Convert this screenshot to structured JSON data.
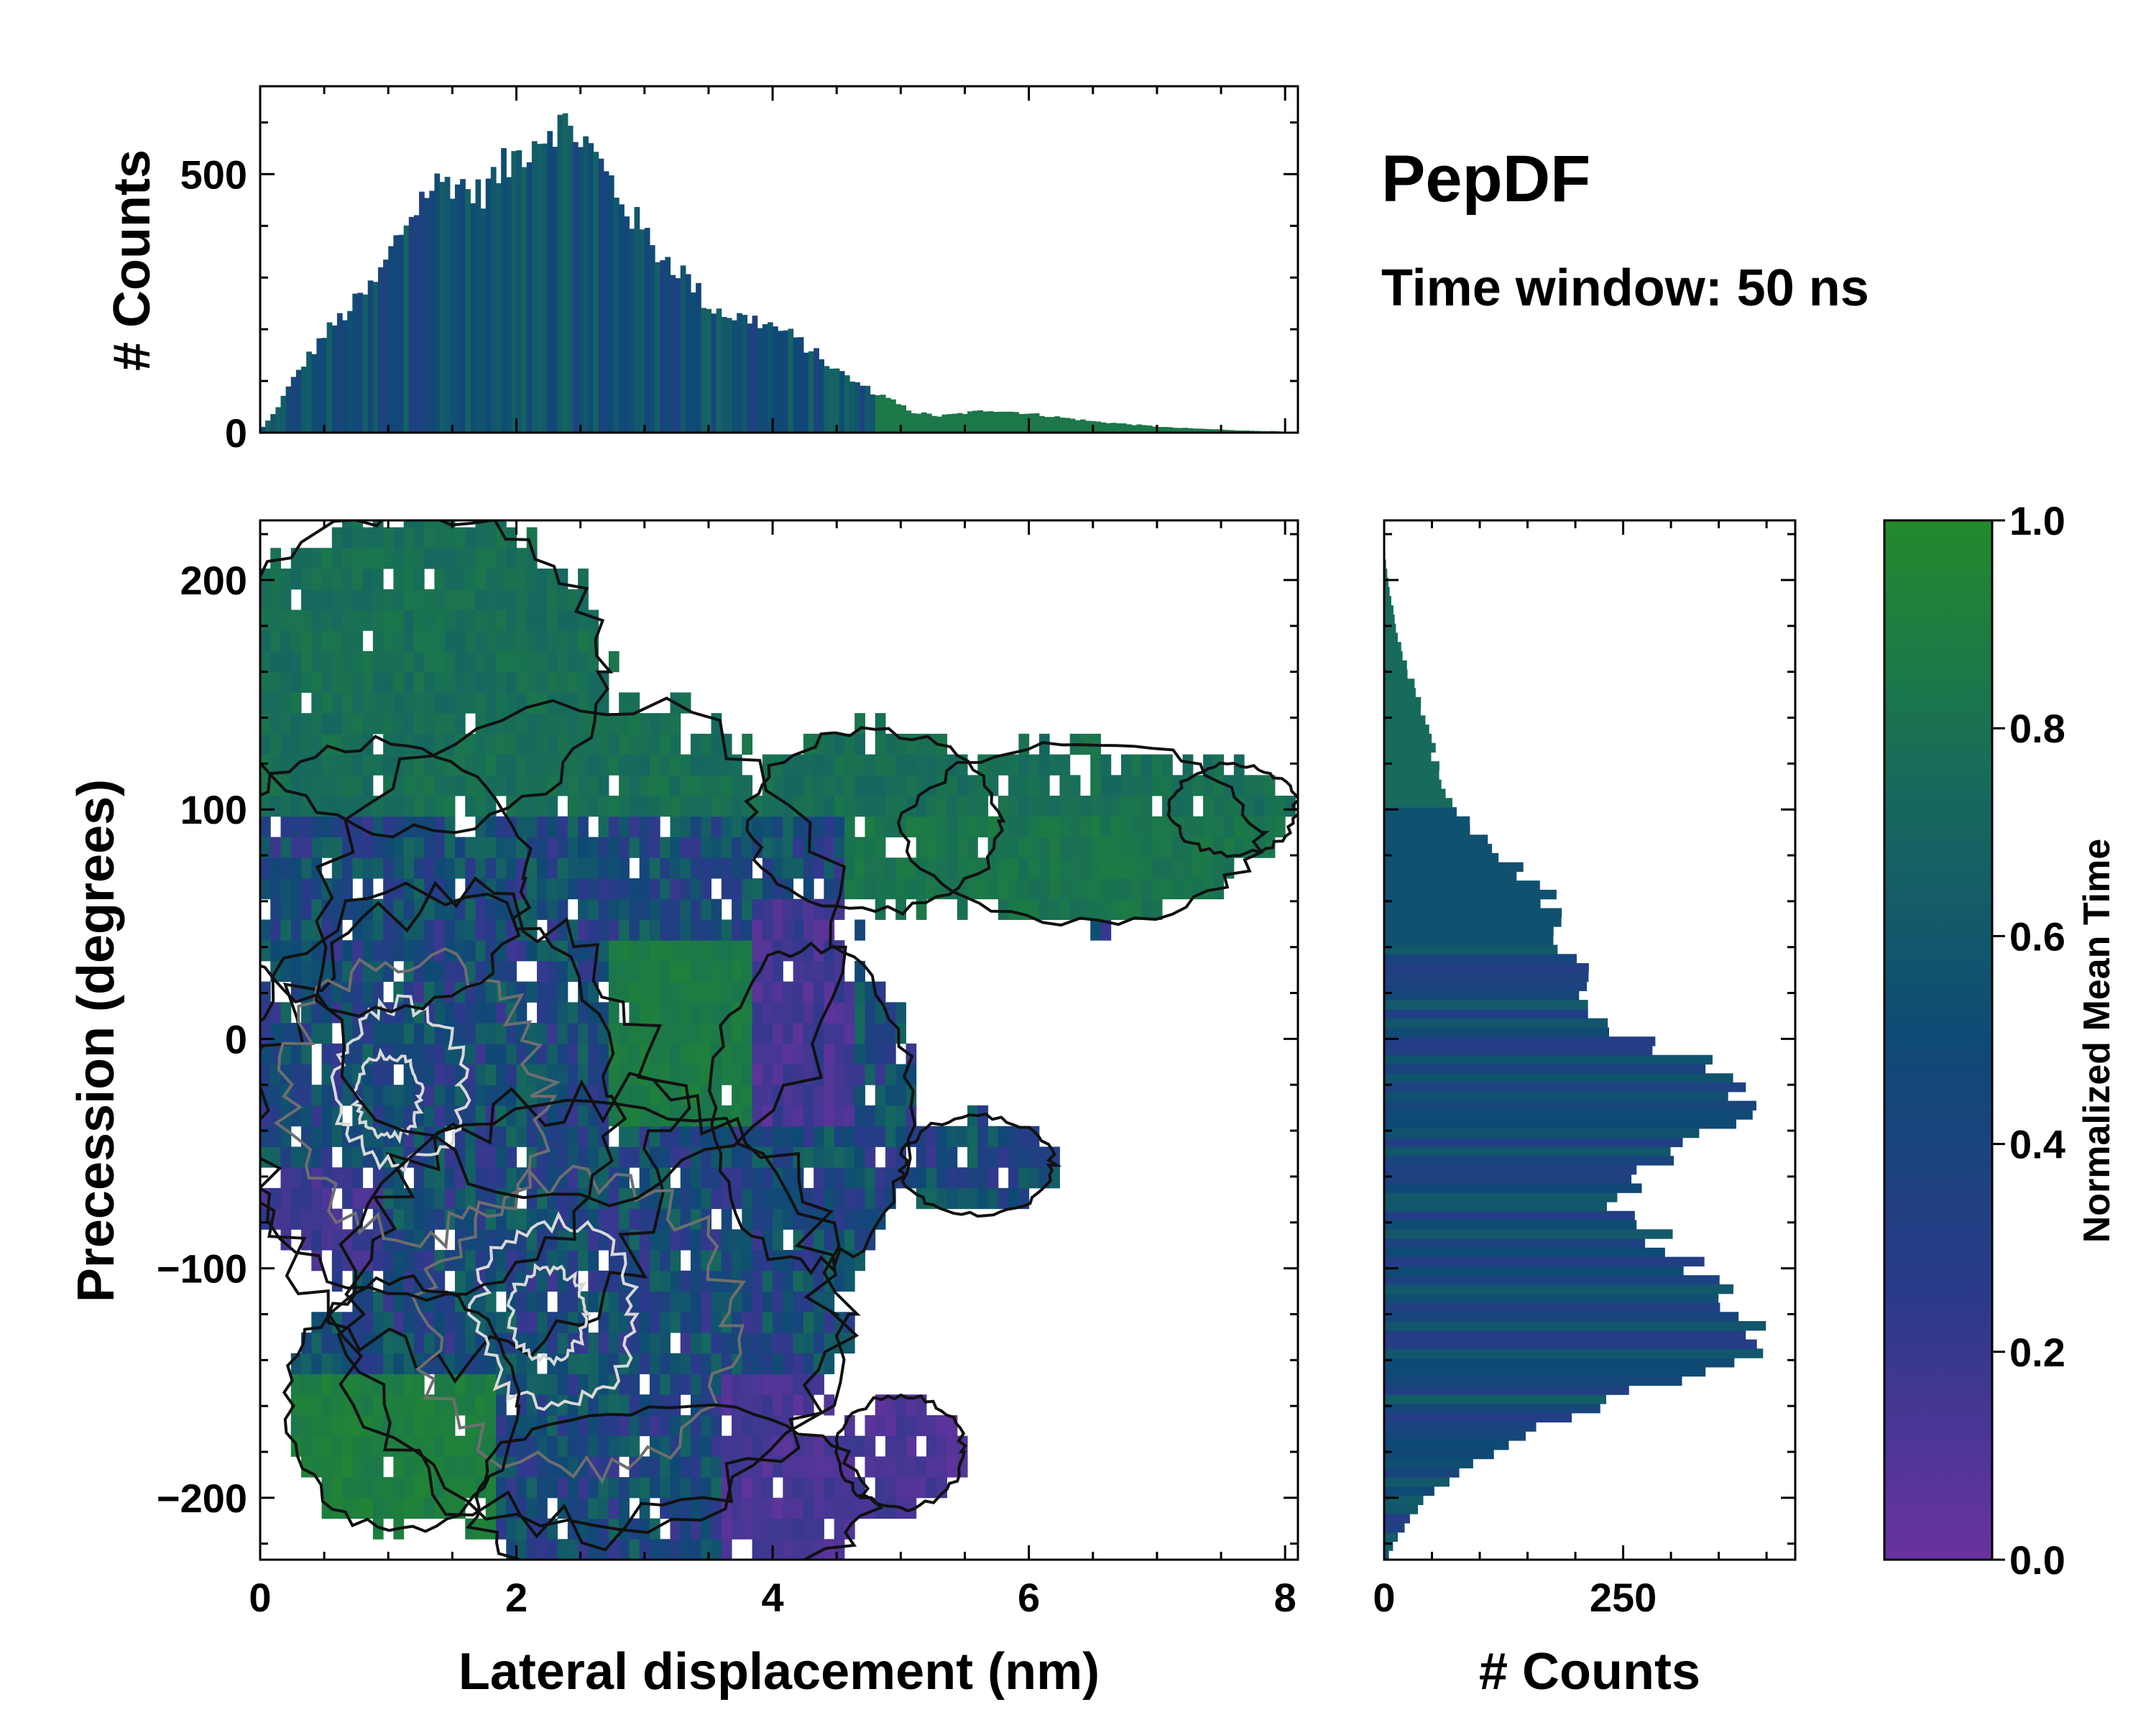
{
  "figure": {
    "title": "PepDF",
    "subtitle": "Time window: 50 ns"
  },
  "colors": {
    "cmap": [
      "#6a329f",
      "#2b3a8a",
      "#0f4a75",
      "#176b5c",
      "#238a2c"
    ],
    "contour_dark": "#111111",
    "contour_gray": "#6e6e6e",
    "contour_light": "#d8d8d8"
  },
  "chart_data": [
    {
      "name": "top-histogram",
      "type": "bar",
      "xlabel": "",
      "ylabel": "# Counts",
      "xlim": [
        0,
        8.1
      ],
      "ylim": [
        0,
        670
      ],
      "yticks": [
        0,
        500
      ],
      "bin_width": 0.04,
      "profile": {
        "x": [
          0.0,
          0.1,
          0.3,
          0.5,
          0.7,
          0.9,
          1.1,
          1.3,
          1.5,
          1.7,
          1.9,
          2.1,
          2.3,
          2.5,
          2.7,
          2.9,
          3.1,
          3.3,
          3.5,
          3.7,
          3.9,
          4.1,
          4.3,
          4.5,
          4.7,
          4.9,
          5.1,
          5.3,
          5.5,
          5.7,
          5.9,
          6.1,
          6.3,
          6.5,
          6.7,
          6.9,
          7.1,
          7.3,
          7.5,
          7.7,
          7.9,
          8.0
        ],
        "y": [
          5,
          35,
          120,
          190,
          240,
          290,
          390,
          470,
          490,
          460,
          510,
          560,
          600,
          575,
          500,
          420,
          350,
          310,
          245,
          225,
          215,
          195,
          160,
          120,
          90,
          65,
          40,
          32,
          38,
          44,
          40,
          34,
          28,
          22,
          18,
          14,
          10,
          8,
          6,
          4,
          3,
          2
        ]
      }
    },
    {
      "name": "main-heatmap",
      "type": "heatmap",
      "xlabel": "Lateral displacement (nm)",
      "ylabel": "Precession (degrees)",
      "xlim": [
        0,
        8.1
      ],
      "ylim": [
        -227,
        226
      ],
      "xticks": [
        0,
        2,
        4,
        6,
        8
      ],
      "yticks": [
        -200,
        -100,
        0,
        100,
        200
      ],
      "colorscale": "purple-blue-green (Normalized Mean Time)"
    },
    {
      "name": "right-histogram",
      "type": "bar",
      "orientation": "horizontal",
      "xlabel": "# Counts",
      "ylabel": "",
      "xlim": [
        0,
        430
      ],
      "ylim": [
        -227,
        226
      ],
      "xticks": [
        0,
        250
      ],
      "bin_width": 4,
      "profile": {
        "y": [
          -227,
          -220,
          -210,
          -200,
          -190,
          -180,
          -170,
          -160,
          -150,
          -140,
          -130,
          -120,
          -110,
          -100,
          -90,
          -80,
          -70,
          -60,
          -50,
          -40,
          -30,
          -20,
          -10,
          0,
          10,
          20,
          30,
          40,
          50,
          60,
          70,
          80,
          90,
          100,
          110,
          120,
          130,
          140,
          150,
          160,
          170,
          180,
          190,
          200,
          210,
          226
        ],
        "x": [
          3,
          10,
          25,
          45,
          75,
          110,
          160,
          220,
          300,
          370,
          380,
          370,
          345,
          335,
          300,
          260,
          250,
          270,
          320,
          350,
          370,
          360,
          330,
          270,
          220,
          210,
          200,
          185,
          180,
          175,
          150,
          120,
          100,
          70,
          60,
          55,
          50,
          40,
          35,
          25,
          18,
          12,
          8,
          4,
          1,
          0
        ]
      }
    }
  ],
  "colorbar": {
    "label": "Normalized Mean Time",
    "range": [
      0.0,
      1.0
    ],
    "ticks": [
      "0.0",
      "0.2",
      "0.4",
      "0.6",
      "0.8",
      "1.0"
    ]
  }
}
